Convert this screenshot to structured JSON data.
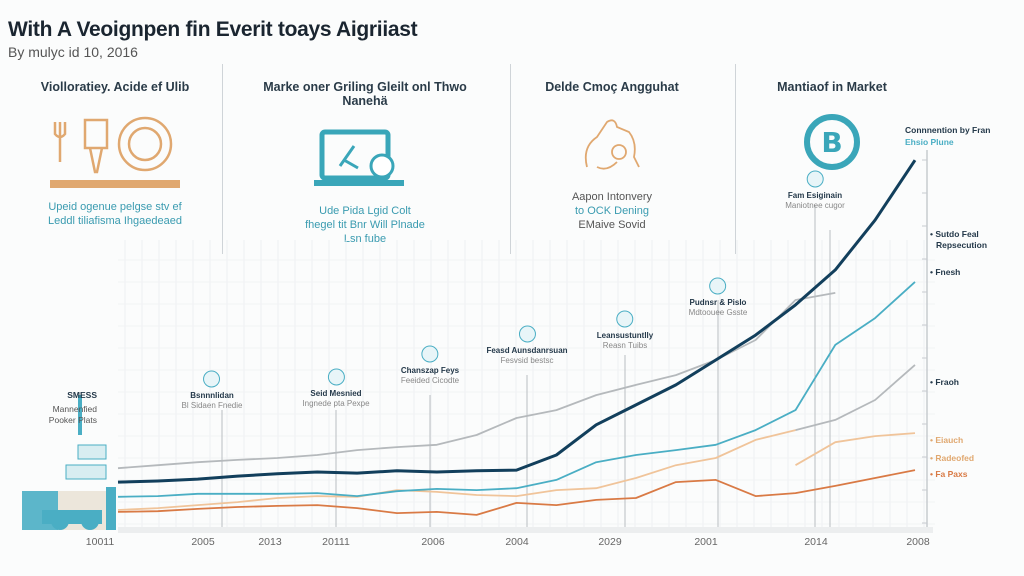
{
  "header": {
    "title": "With A Veoignpen fin Everit toays Aigriiast",
    "subtitle": "By mulyc id 10, 2016"
  },
  "panels": [
    {
      "title": "Violloratiey. Acide ef Ulib",
      "icon": "agriculture-icon",
      "caption": [
        "Upeid ogenue pelgse stv ef",
        "Leddl tiliafisma Ihgaedeaed"
      ],
      "color": "#e0a870"
    },
    {
      "title": "Marke oner Griling Gleilt onl Thwo Nanehä",
      "icon": "laptop-icon",
      "caption": [
        "Ude Pida Lgid Colt",
        "fhegel tit Bnr Will Plnade",
        "Lsn fube"
      ],
      "color": "#3aa6b9"
    },
    {
      "title": "Delde Cmoç Angguhat",
      "icon": "handshake-icon",
      "caption": [
        "Aapon Intonvery",
        "to OCK Dening",
        "EMaive Sovid"
      ],
      "color": "#e0a870"
    },
    {
      "title": "Mantiaof in Market",
      "icon": "bitcoin-icon",
      "caption": [],
      "color": "#3aa6b9"
    }
  ],
  "chart_data": {
    "type": "line",
    "title": "",
    "x_tick_labels": [
      "10011",
      "2005",
      "2013",
      "20111",
      "2006",
      "2004",
      "2029",
      "2001",
      "2014",
      "2008"
    ],
    "ylim": [
      0,
      100
    ],
    "grid": true,
    "series": [
      {
        "key": "navy",
        "color": "#123f5c",
        "values": [
          11.9,
          12.2,
          12.7,
          13.5,
          14.1,
          14.6,
          14.3,
          14.9,
          14.6,
          14.9,
          15.1,
          19.1,
          27.1,
          32.4,
          37.7,
          44.3,
          50.9,
          58.9,
          68.2,
          81.4,
          97.3
        ]
      },
      {
        "key": "teal",
        "color": "#4aaec4",
        "values": [
          8.0,
          8.2,
          8.8,
          8.8,
          8.8,
          9.0,
          8.2,
          9.5,
          10.1,
          9.8,
          10.3,
          12.5,
          17.2,
          19.1,
          20.4,
          21.8,
          25.7,
          31.0,
          48.3,
          55.4,
          65.0
        ]
      },
      {
        "key": "gray",
        "color": "#b5b9bc",
        "values": [
          15.6,
          16.4,
          17.2,
          17.8,
          18.3,
          19.1,
          20.4,
          21.2,
          21.8,
          24.4,
          28.9,
          31.0,
          35.0,
          37.7,
          40.3,
          44.3,
          49.6,
          60.2,
          62.1,
          null,
          null
        ]
      },
      {
        "key": "gray-2",
        "color": "#b5b9bc",
        "values": [
          null,
          null,
          null,
          null,
          null,
          null,
          null,
          null,
          null,
          null,
          null,
          null,
          null,
          null,
          null,
          null,
          null,
          25.7,
          28.4,
          33.7,
          43.0
        ]
      },
      {
        "key": "light-orange",
        "color": "#f0c49a",
        "values": [
          4.5,
          5.0,
          5.8,
          6.6,
          7.7,
          8.2,
          8.0,
          9.8,
          9.3,
          8.5,
          8.2,
          9.8,
          10.3,
          13.0,
          16.4,
          18.3,
          23.1,
          25.7,
          null,
          null,
          null
        ]
      },
      {
        "key": "light-orange-2",
        "color": "#f0c49a",
        "values": [
          null,
          null,
          null,
          null,
          null,
          null,
          null,
          null,
          null,
          null,
          null,
          null,
          null,
          null,
          null,
          null,
          null,
          16.4,
          22.5,
          24.1,
          24.9
        ]
      },
      {
        "key": "dark-orange",
        "color": "#d97a45",
        "values": [
          4.0,
          4.2,
          4.8,
          5.3,
          5.6,
          5.8,
          5.0,
          3.7,
          4.0,
          3.2,
          6.4,
          5.8,
          7.2,
          7.7,
          11.9,
          12.5,
          8.2,
          9.0,
          10.9,
          13.0,
          15.1
        ]
      }
    ],
    "annotations": [
      {
        "title": "SMESS",
        "lines": [
          "Mannenfied",
          "Pooker Plats"
        ]
      },
      {
        "title": "Bsnnnlidan",
        "sub": "Bl Sidaen Fnedie"
      },
      {
        "title": "Seid Mesnied",
        "sub": "Ingnede pta Pexpe"
      },
      {
        "title": "Chanszap Feys",
        "sub": "Feeided Cicodte"
      },
      {
        "title": "Feasd Aunsdanrsuan",
        "sub": "Fesvsid bestsc"
      },
      {
        "title": "Leansustuntlly",
        "sub": "Reasn Tuibs"
      },
      {
        "title": "Pudnsr & Pislo",
        "sub": "Mdtoouee Gsste"
      },
      {
        "title": "Fam Esiginain",
        "sub": "Maniotnee cugor"
      }
    ],
    "right_labels": [
      {
        "text": "Connnention by Fran",
        "color": "#24394a"
      },
      {
        "text": "Ehsio Plune",
        "color": "#4aaec4"
      },
      {
        "text": "Sutdo Feal",
        "color": "#24394a"
      },
      {
        "text": "Repsecution",
        "color": "#24394a"
      },
      {
        "text": "Fnesh",
        "color": "#24394a"
      },
      {
        "text": "Fraoh",
        "color": "#24394a"
      },
      {
        "text": "Eiauch",
        "color": "#e0a870"
      },
      {
        "text": "Radeofed",
        "color": "#e0a870"
      },
      {
        "text": "Fa Paxs",
        "color": "#d97a45"
      }
    ]
  }
}
